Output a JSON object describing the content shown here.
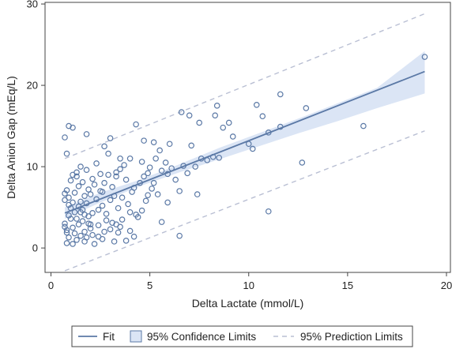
{
  "chart_data": {
    "type": "scatter",
    "title": "",
    "xlabel": "Delta Lactate (mmol/L)",
    "ylabel": "Delta Anion Gap (mEq/L)",
    "xlim": [
      -0.3,
      20.2
    ],
    "ylim": [
      -3,
      30.2
    ],
    "x_ticks": [
      "0",
      "5",
      "10",
      "15",
      "20"
    ],
    "y_ticks": [
      "0",
      "10",
      "20",
      "30"
    ],
    "x_tick_values": [
      0,
      5,
      10,
      15,
      20
    ],
    "y_tick_values": [
      0,
      10,
      20,
      30
    ],
    "grid": false,
    "legend_placement": "bottom",
    "legend": [
      {
        "label": "Fit",
        "style": "line"
      },
      {
        "label": "95% Confidence Limits",
        "style": "band"
      },
      {
        "label": "95% Prediction Limits",
        "style": "dashed"
      }
    ],
    "fit": {
      "x_start": 0.7,
      "x_end": 18.9,
      "y_start": 4.3,
      "y_end": 21.7
    },
    "confidence_band": {
      "x": [
        0.7,
        2.5,
        4.5,
        6.5,
        8.5,
        10.5,
        12.5,
        14.5,
        16.5,
        18.9
      ],
      "lower": [
        3.6,
        5.6,
        7.6,
        9.3,
        10.9,
        12.5,
        14.1,
        15.6,
        17.2,
        19.0
      ],
      "upper": [
        5.0,
        6.8,
        8.4,
        10.3,
        12.3,
        14.1,
        15.9,
        17.8,
        19.7,
        24.2
      ]
    },
    "prediction_upper": {
      "x_start": 0.7,
      "x_end": 18.9,
      "y_start": 11.0,
      "y_end": 28.8
    },
    "prediction_lower": {
      "x_start": 0.7,
      "x_end": 18.9,
      "y_start": -2.8,
      "y_end": 14.4
    },
    "points": [
      [
        0.7,
        13.6
      ],
      [
        0.8,
        11.6
      ],
      [
        0.9,
        15.0
      ],
      [
        1.1,
        14.8
      ],
      [
        1.8,
        14.0
      ],
      [
        2.7,
        12.5
      ],
      [
        3.0,
        13.5
      ],
      [
        3.5,
        11.0
      ],
      [
        4.0,
        11.0
      ],
      [
        4.3,
        15.2
      ],
      [
        4.7,
        13.2
      ],
      [
        5.2,
        13.0
      ],
      [
        5.5,
        12.0
      ],
      [
        6.0,
        12.8
      ],
      [
        6.6,
        16.7
      ],
      [
        7.0,
        16.3
      ],
      [
        7.5,
        15.4
      ],
      [
        8.3,
        16.3
      ],
      [
        8.4,
        17.5
      ],
      [
        8.7,
        14.8
      ],
      [
        9.0,
        15.4
      ],
      [
        9.2,
        13.7
      ],
      [
        10.0,
        12.8
      ],
      [
        10.2,
        12.2
      ],
      [
        10.4,
        17.6
      ],
      [
        10.7,
        16.2
      ],
      [
        11.0,
        14.2
      ],
      [
        11.6,
        18.9
      ],
      [
        11.6,
        14.9
      ],
      [
        12.9,
        17.2
      ],
      [
        12.7,
        10.5
      ],
      [
        15.8,
        15.0
      ],
      [
        18.9,
        23.5
      ],
      [
        11.0,
        4.5
      ],
      [
        6.5,
        1.5
      ],
      [
        5.6,
        3.2
      ],
      [
        7.4,
        6.6
      ],
      [
        6.5,
        7.0
      ],
      [
        5.9,
        9.1
      ],
      [
        6.3,
        8.4
      ],
      [
        6.7,
        10.1
      ],
      [
        7.1,
        12.6
      ],
      [
        7.9,
        10.8
      ],
      [
        8.2,
        11.2
      ],
      [
        8.5,
        11.1
      ],
      [
        7.6,
        11.0
      ],
      [
        5.9,
        5.6
      ],
      [
        4.9,
        6.5
      ],
      [
        4.5,
        8.0
      ],
      [
        4.2,
        7.4
      ],
      [
        3.8,
        8.4
      ],
      [
        3.5,
        9.7
      ],
      [
        3.3,
        8.8
      ],
      [
        3.1,
        7.5
      ],
      [
        2.9,
        9.0
      ],
      [
        2.7,
        8.0
      ],
      [
        2.5,
        7.0
      ],
      [
        2.3,
        6.0
      ],
      [
        2.1,
        8.5
      ],
      [
        1.9,
        7.2
      ],
      [
        1.8,
        9.6
      ],
      [
        1.7,
        6.4
      ],
      [
        1.6,
        8.1
      ],
      [
        1.5,
        5.7
      ],
      [
        1.4,
        7.6
      ],
      [
        1.3,
        8.8
      ],
      [
        1.2,
        6.8
      ],
      [
        1.1,
        9.0
      ],
      [
        1.0,
        4.9
      ],
      [
        0.9,
        6.2
      ],
      [
        0.8,
        7.1
      ],
      [
        0.7,
        5.9
      ],
      [
        0.7,
        3.0
      ],
      [
        0.8,
        2.2
      ],
      [
        0.9,
        1.3
      ],
      [
        0.8,
        0.6
      ],
      [
        0.7,
        2.6
      ],
      [
        0.9,
        4.0
      ],
      [
        1.0,
        3.6
      ],
      [
        1.1,
        2.5
      ],
      [
        1.2,
        1.8
      ],
      [
        1.3,
        1.0
      ],
      [
        1.4,
        2.9
      ],
      [
        1.5,
        4.4
      ],
      [
        1.6,
        3.3
      ],
      [
        1.7,
        2.0
      ],
      [
        1.8,
        1.3
      ],
      [
        1.9,
        3.9
      ],
      [
        2.0,
        2.4
      ],
      [
        2.1,
        1.6
      ],
      [
        2.2,
        0.5
      ],
      [
        2.4,
        2.8
      ],
      [
        2.6,
        1.1
      ],
      [
        2.8,
        3.4
      ],
      [
        3.0,
        2.3
      ],
      [
        3.2,
        0.8
      ],
      [
        3.4,
        1.9
      ],
      [
        3.6,
        3.5
      ],
      [
        3.8,
        0.9
      ],
      [
        4.0,
        2.1
      ],
      [
        4.2,
        1.4
      ],
      [
        4.4,
        3.8
      ],
      [
        4.6,
        4.6
      ],
      [
        4.8,
        5.8
      ],
      [
        5.0,
        9.9
      ],
      [
        5.2,
        8.0
      ],
      [
        5.4,
        6.6
      ],
      [
        5.6,
        9.5
      ],
      [
        5.8,
        10.5
      ],
      [
        6.1,
        9.8
      ],
      [
        6.9,
        9.2
      ],
      [
        7.3,
        10.0
      ],
      [
        2.4,
        4.7
      ],
      [
        2.6,
        5.2
      ],
      [
        2.8,
        4.2
      ],
      [
        3.0,
        5.9
      ],
      [
        3.2,
        6.4
      ],
      [
        3.4,
        4.9
      ],
      [
        3.6,
        6.2
      ],
      [
        3.9,
        5.4
      ],
      [
        4.1,
        6.9
      ],
      [
        4.3,
        4.1
      ],
      [
        1.2,
        4.4
      ],
      [
        1.4,
        5.1
      ],
      [
        1.6,
        4.7
      ],
      [
        1.8,
        5.5
      ],
      [
        2.0,
        6.6
      ],
      [
        2.2,
        7.8
      ],
      [
        1.0,
        8.3
      ],
      [
        1.5,
        10.0
      ],
      [
        2.3,
        10.4
      ],
      [
        2.9,
        11.6
      ],
      [
        3.7,
        10.2
      ],
      [
        4.6,
        10.6
      ],
      [
        5.3,
        11.0
      ],
      [
        3.3,
        9.3
      ],
      [
        2.5,
        9.1
      ],
      [
        1.3,
        9.3
      ],
      [
        0.7,
        6.7
      ],
      [
        0.9,
        5.3
      ],
      [
        1.1,
        5.6
      ],
      [
        1.9,
        3.0
      ],
      [
        2.1,
        4.3
      ],
      [
        2.6,
        6.9
      ],
      [
        3.1,
        3.1
      ],
      [
        3.5,
        2.6
      ],
      [
        4.0,
        4.4
      ],
      [
        4.7,
        8.8
      ],
      [
        4.9,
        9.2
      ],
      [
        5.1,
        7.3
      ],
      [
        1.7,
        0.8
      ],
      [
        2.4,
        1.4
      ],
      [
        1.1,
        0.5
      ],
      [
        0.8,
        1.9
      ],
      [
        1.5,
        1.5
      ],
      [
        2.0,
        2.9
      ],
      [
        2.7,
        2.0
      ],
      [
        3.3,
        2.9
      ],
      [
        1.3,
        3.6
      ],
      [
        1.7,
        4.1
      ]
    ]
  }
}
